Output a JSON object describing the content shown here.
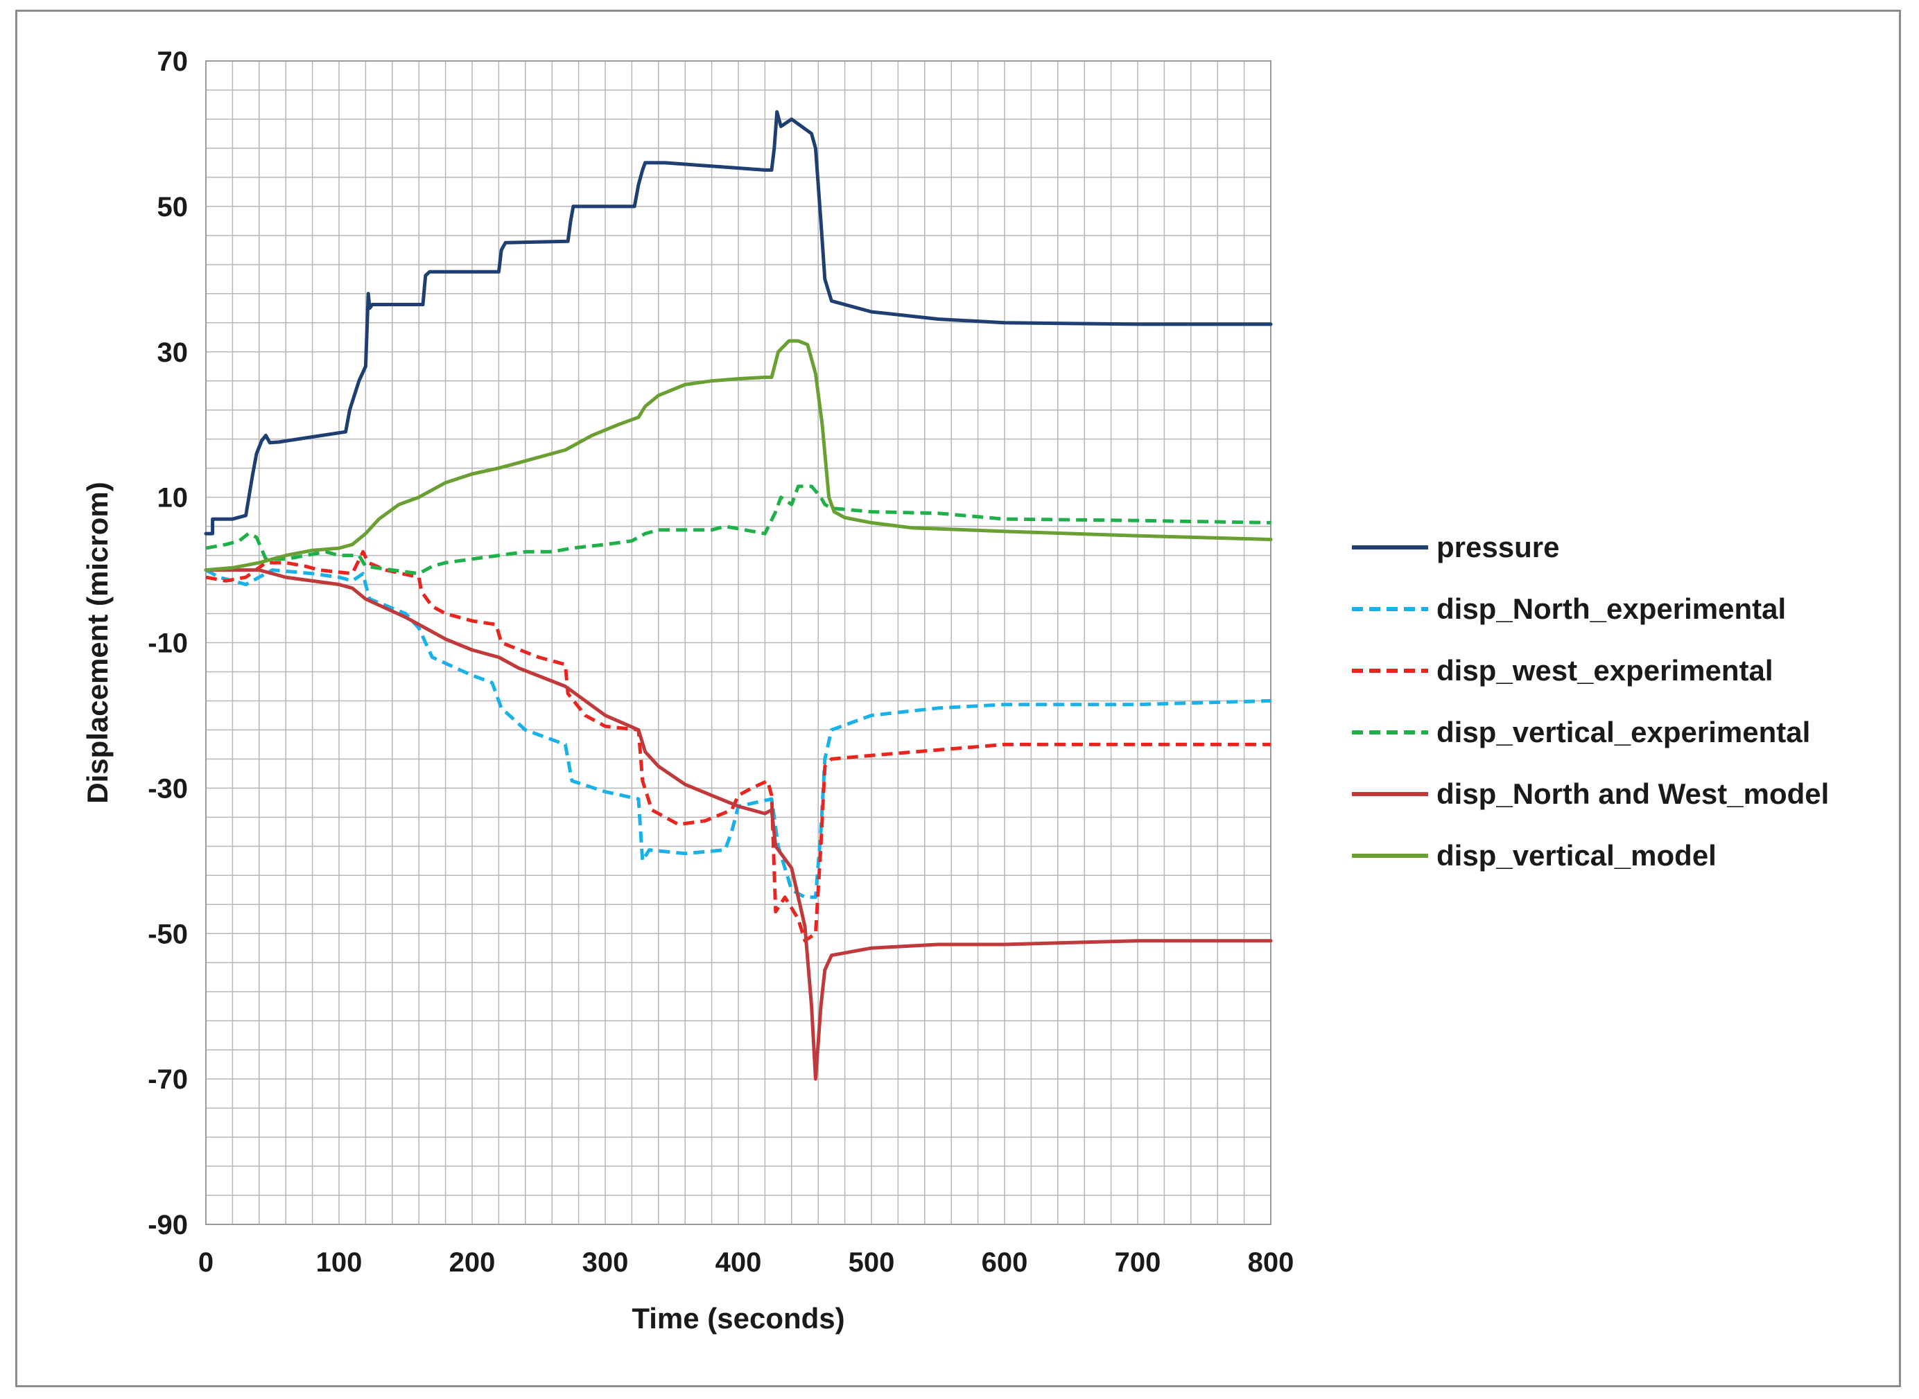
{
  "chart_data": {
    "type": "line",
    "title": "",
    "xlabel": "Time (seconds)",
    "ylabel": "Displacement (microm)",
    "xlim": [
      0,
      800
    ],
    "ylim": [
      -90,
      70
    ],
    "x_ticks": [
      0,
      100,
      200,
      300,
      400,
      500,
      600,
      700,
      800
    ],
    "y_ticks": [
      -90,
      -70,
      -50,
      -30,
      -10,
      10,
      30,
      50,
      70
    ],
    "x_minor_step": 20,
    "y_minor_step": 4,
    "grid": true,
    "legend_position": "right",
    "series": [
      {
        "name": "pressure",
        "color": "#1f3f72",
        "dash": "solid",
        "points": [
          [
            0,
            5
          ],
          [
            5,
            5
          ],
          [
            5,
            7
          ],
          [
            20,
            7
          ],
          [
            30,
            7.5
          ],
          [
            35,
            13
          ],
          [
            38,
            16
          ],
          [
            42,
            17.8
          ],
          [
            45,
            18.5
          ],
          [
            48,
            17.5
          ],
          [
            55,
            17.6
          ],
          [
            80,
            18.3
          ],
          [
            105,
            19
          ],
          [
            108,
            22
          ],
          [
            115,
            26
          ],
          [
            120,
            28
          ],
          [
            122,
            38
          ],
          [
            123,
            36
          ],
          [
            125,
            36.5
          ],
          [
            163,
            36.5
          ],
          [
            165,
            40.5
          ],
          [
            168,
            41
          ],
          [
            220,
            41
          ],
          [
            222,
            44
          ],
          [
            225,
            45
          ],
          [
            272,
            45.2
          ],
          [
            274,
            48
          ],
          [
            276,
            50
          ],
          [
            322,
            50
          ],
          [
            325,
            53
          ],
          [
            328,
            55
          ],
          [
            330,
            56
          ],
          [
            345,
            56
          ],
          [
            420,
            55
          ],
          [
            425,
            55
          ],
          [
            427,
            58
          ],
          [
            429,
            63
          ],
          [
            432,
            61
          ],
          [
            440,
            62
          ],
          [
            455,
            60
          ],
          [
            458,
            58
          ],
          [
            462,
            48
          ],
          [
            465,
            40
          ],
          [
            470,
            37
          ],
          [
            500,
            35.5
          ],
          [
            550,
            34.5
          ],
          [
            600,
            34
          ],
          [
            700,
            33.8
          ],
          [
            800,
            33.8
          ]
        ]
      },
      {
        "name": "disp_North_experimental",
        "color": "#1ab0e8",
        "dash": "dashed",
        "points": [
          [
            0,
            0
          ],
          [
            10,
            -1
          ],
          [
            30,
            -2
          ],
          [
            50,
            0
          ],
          [
            80,
            -0.5
          ],
          [
            100,
            -1
          ],
          [
            110,
            -1.5
          ],
          [
            118,
            -0.5
          ],
          [
            120,
            -2
          ],
          [
            123,
            -4
          ],
          [
            150,
            -6
          ],
          [
            160,
            -8
          ],
          [
            165,
            -10
          ],
          [
            170,
            -12
          ],
          [
            200,
            -14.5
          ],
          [
            215,
            -15.5
          ],
          [
            222,
            -19
          ],
          [
            240,
            -22
          ],
          [
            270,
            -24
          ],
          [
            275,
            -29
          ],
          [
            300,
            -30.5
          ],
          [
            325,
            -31.5
          ],
          [
            328,
            -40
          ],
          [
            333,
            -38.5
          ],
          [
            360,
            -39
          ],
          [
            390,
            -38.5
          ],
          [
            395,
            -36
          ],
          [
            400,
            -32.5
          ],
          [
            425,
            -31.5
          ],
          [
            430,
            -38
          ],
          [
            440,
            -44
          ],
          [
            450,
            -45
          ],
          [
            458,
            -45
          ],
          [
            462,
            -36
          ],
          [
            465,
            -26
          ],
          [
            470,
            -22
          ],
          [
            500,
            -20
          ],
          [
            550,
            -19
          ],
          [
            600,
            -18.5
          ],
          [
            700,
            -18.5
          ],
          [
            800,
            -18
          ]
        ]
      },
      {
        "name": "disp_west_experimental",
        "color": "#e8251f",
        "dash": "dashed",
        "points": [
          [
            0,
            -1
          ],
          [
            15,
            -1.5
          ],
          [
            30,
            -1
          ],
          [
            45,
            1
          ],
          [
            60,
            1
          ],
          [
            75,
            0.5
          ],
          [
            85,
            0
          ],
          [
            110,
            -0.5
          ],
          [
            118,
            2.5
          ],
          [
            122,
            1
          ],
          [
            135,
            0
          ],
          [
            160,
            -1
          ],
          [
            162,
            -3
          ],
          [
            170,
            -5
          ],
          [
            180,
            -6
          ],
          [
            200,
            -7
          ],
          [
            218,
            -7.5
          ],
          [
            222,
            -10
          ],
          [
            250,
            -12
          ],
          [
            270,
            -13
          ],
          [
            272,
            -17
          ],
          [
            285,
            -20
          ],
          [
            300,
            -21.5
          ],
          [
            325,
            -22
          ],
          [
            328,
            -29
          ],
          [
            335,
            -33
          ],
          [
            355,
            -35
          ],
          [
            375,
            -34.5
          ],
          [
            395,
            -33
          ],
          [
            400,
            -31
          ],
          [
            410,
            -30
          ],
          [
            422,
            -29
          ],
          [
            425,
            -31
          ],
          [
            428,
            -47
          ],
          [
            435,
            -45
          ],
          [
            445,
            -48
          ],
          [
            450,
            -51
          ],
          [
            458,
            -50
          ],
          [
            462,
            -38
          ],
          [
            465,
            -27
          ],
          [
            470,
            -26
          ],
          [
            500,
            -25.5
          ],
          [
            600,
            -24
          ],
          [
            700,
            -24
          ],
          [
            800,
            -24
          ]
        ]
      },
      {
        "name": "disp_vertical_experimental",
        "color": "#1fb04a",
        "dash": "dashed",
        "points": [
          [
            0,
            3
          ],
          [
            15,
            3.5
          ],
          [
            25,
            4
          ],
          [
            32,
            5
          ],
          [
            38,
            4.5
          ],
          [
            45,
            1.5
          ],
          [
            60,
            1.5
          ],
          [
            90,
            2.5
          ],
          [
            100,
            2
          ],
          [
            115,
            2
          ],
          [
            120,
            0.5
          ],
          [
            140,
            0
          ],
          [
            160,
            -0.5
          ],
          [
            170,
            0.5
          ],
          [
            180,
            1
          ],
          [
            200,
            1.5
          ],
          [
            220,
            2
          ],
          [
            240,
            2.5
          ],
          [
            260,
            2.5
          ],
          [
            275,
            3
          ],
          [
            300,
            3.5
          ],
          [
            320,
            4
          ],
          [
            330,
            5
          ],
          [
            340,
            5.5
          ],
          [
            380,
            5.5
          ],
          [
            390,
            6
          ],
          [
            405,
            5.5
          ],
          [
            420,
            5
          ],
          [
            428,
            8
          ],
          [
            432,
            10
          ],
          [
            440,
            9
          ],
          [
            445,
            11.5
          ],
          [
            455,
            11.5
          ],
          [
            462,
            10
          ],
          [
            465,
            9
          ],
          [
            470,
            8.5
          ],
          [
            500,
            8
          ],
          [
            550,
            7.8
          ],
          [
            600,
            7
          ],
          [
            700,
            6.8
          ],
          [
            800,
            6.5
          ]
        ]
      },
      {
        "name": "disp_North and West_model",
        "color": "#c0393b",
        "dash": "solid",
        "points": [
          [
            0,
            0
          ],
          [
            10,
            0
          ],
          [
            20,
            0
          ],
          [
            40,
            0
          ],
          [
            60,
            -1
          ],
          [
            100,
            -2
          ],
          [
            110,
            -2.5
          ],
          [
            120,
            -4
          ],
          [
            150,
            -6.5
          ],
          [
            165,
            -8
          ],
          [
            180,
            -9.5
          ],
          [
            200,
            -11
          ],
          [
            220,
            -12
          ],
          [
            235,
            -13.5
          ],
          [
            270,
            -16
          ],
          [
            285,
            -18
          ],
          [
            300,
            -20
          ],
          [
            325,
            -22
          ],
          [
            330,
            -25
          ],
          [
            340,
            -27
          ],
          [
            360,
            -29.5
          ],
          [
            380,
            -31
          ],
          [
            400,
            -32.5
          ],
          [
            420,
            -33.5
          ],
          [
            425,
            -33
          ],
          [
            428,
            -38
          ],
          [
            440,
            -41
          ],
          [
            450,
            -49
          ],
          [
            455,
            -60
          ],
          [
            458,
            -70
          ],
          [
            462,
            -60
          ],
          [
            465,
            -55
          ],
          [
            470,
            -53
          ],
          [
            500,
            -52
          ],
          [
            550,
            -51.5
          ],
          [
            600,
            -51.5
          ],
          [
            700,
            -51
          ],
          [
            800,
            -51
          ]
        ]
      },
      {
        "name": "disp_vertical_model",
        "color": "#6aa033",
        "dash": "solid",
        "points": [
          [
            0,
            0
          ],
          [
            20,
            0.3
          ],
          [
            40,
            1
          ],
          [
            60,
            2
          ],
          [
            80,
            2.7
          ],
          [
            100,
            3
          ],
          [
            110,
            3.5
          ],
          [
            120,
            5
          ],
          [
            130,
            7
          ],
          [
            145,
            9
          ],
          [
            160,
            10
          ],
          [
            170,
            11
          ],
          [
            180,
            12
          ],
          [
            200,
            13.2
          ],
          [
            220,
            14
          ],
          [
            230,
            14.5
          ],
          [
            250,
            15.5
          ],
          [
            270,
            16.5
          ],
          [
            280,
            17.5
          ],
          [
            290,
            18.5
          ],
          [
            310,
            20
          ],
          [
            325,
            21
          ],
          [
            330,
            22.5
          ],
          [
            340,
            24
          ],
          [
            360,
            25.5
          ],
          [
            380,
            26
          ],
          [
            400,
            26.3
          ],
          [
            420,
            26.5
          ],
          [
            425,
            26.5
          ],
          [
            430,
            30
          ],
          [
            438,
            31.5
          ],
          [
            445,
            31.5
          ],
          [
            452,
            31
          ],
          [
            458,
            27
          ],
          [
            463,
            20
          ],
          [
            468,
            10
          ],
          [
            472,
            8
          ],
          [
            480,
            7.2
          ],
          [
            500,
            6.5
          ],
          [
            530,
            5.8
          ],
          [
            600,
            5.3
          ],
          [
            700,
            4.7
          ],
          [
            800,
            4.2
          ]
        ]
      }
    ]
  }
}
